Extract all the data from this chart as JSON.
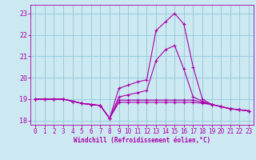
{
  "xlabel": "Windchill (Refroidissement éolien,°C)",
  "background_color": "#cce8f0",
  "grid_color": "#99cce0",
  "line_color": "#aa00aa",
  "x_hours": [
    0,
    1,
    2,
    3,
    4,
    5,
    6,
    7,
    8,
    9,
    10,
    11,
    12,
    13,
    14,
    15,
    16,
    17,
    18,
    19,
    20,
    21,
    22,
    23
  ],
  "series": [
    [
      19.0,
      19.0,
      19.0,
      19.0,
      18.9,
      18.8,
      18.75,
      18.7,
      18.1,
      19.5,
      19.65,
      19.8,
      19.9,
      22.2,
      22.6,
      23.0,
      22.5,
      20.5,
      19.0,
      18.75,
      18.65,
      18.55,
      18.5,
      18.45
    ],
    [
      19.0,
      19.0,
      19.0,
      19.0,
      18.9,
      18.8,
      18.75,
      18.7,
      18.1,
      18.85,
      18.85,
      18.85,
      18.85,
      18.85,
      18.85,
      18.85,
      18.85,
      18.85,
      18.8,
      18.75,
      18.65,
      18.55,
      18.5,
      18.45
    ],
    [
      19.0,
      19.0,
      19.0,
      19.0,
      18.9,
      18.8,
      18.75,
      18.7,
      18.1,
      18.95,
      18.95,
      18.95,
      18.95,
      18.95,
      18.95,
      18.95,
      18.95,
      18.95,
      18.85,
      18.75,
      18.65,
      18.55,
      18.5,
      18.45
    ],
    [
      19.0,
      19.0,
      19.0,
      19.0,
      18.9,
      18.8,
      18.75,
      18.7,
      18.1,
      19.1,
      19.2,
      19.3,
      19.4,
      20.8,
      21.3,
      21.5,
      20.4,
      19.1,
      18.9,
      18.75,
      18.65,
      18.55,
      18.5,
      18.45
    ]
  ],
  "ylim": [
    17.8,
    23.4
  ],
  "yticks": [
    18,
    19,
    20,
    21,
    22,
    23
  ],
  "xticks": [
    0,
    1,
    2,
    3,
    4,
    5,
    6,
    7,
    8,
    9,
    10,
    11,
    12,
    13,
    14,
    15,
    16,
    17,
    18,
    19,
    20,
    21,
    22,
    23
  ],
  "xlabel_fontsize": 5.5,
  "tick_fontsize": 5.5,
  "ylabel_fontsize": 6
}
